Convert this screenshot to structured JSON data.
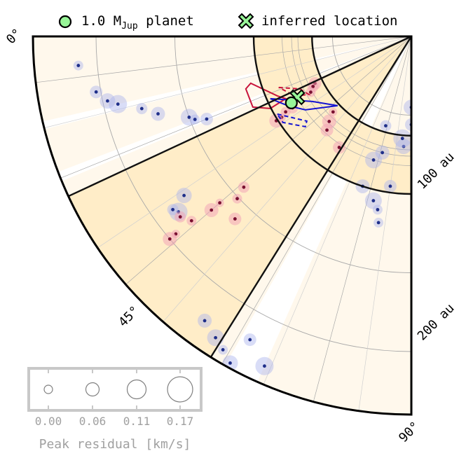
{
  "legend": {
    "planet_label": "1.0 M",
    "planet_sub": "Jup",
    "planet_suffix": " planet",
    "inferred_label": "inferred location"
  },
  "colors": {
    "wedge_fill": "#fff8ec",
    "band_fill": "#ffedc8",
    "planet": "#98f598",
    "blue_marker": "#1f2f8a",
    "blue_halo": "#aab4ee",
    "red_marker": "#7a1030",
    "red_halo": "#f2a0b6",
    "contour_red": "#c8143c",
    "contour_blue": "#1414d2",
    "grid": "#a8a8a8",
    "size_legend": "#b0b0b0"
  },
  "chart_data": {
    "type": "polar-wedge",
    "angle_axis": {
      "unit": "deg",
      "range": [
        0,
        90
      ],
      "ticks": [
        "0°",
        "45°",
        "90°"
      ]
    },
    "radius_axis": {
      "unit": "au",
      "max": 240,
      "ticks": [
        "100 au",
        "200 au"
      ]
    },
    "grid": true,
    "highlight_sector": {
      "angle_range": [
        25,
        58
      ]
    },
    "highlight_annulus": {
      "radius_range": [
        63,
        100
      ]
    },
    "planet": {
      "mass_mjup": 1.0,
      "r_au": 87,
      "theta_deg": 29
    },
    "inferred_location": {
      "r_au": 87,
      "theta_deg": 31
    },
    "blue_points": [
      {
        "r": 212,
        "theta": 5
      },
      {
        "r": 203,
        "theta": 10
      },
      {
        "r": 197,
        "theta": 12
      },
      {
        "r": 191,
        "theta": 13
      },
      {
        "r": 177,
        "theta": 15
      },
      {
        "r": 168,
        "theta": 17
      },
      {
        "r": 150,
        "theta": 20
      },
      {
        "r": 147,
        "theta": 21
      },
      {
        "r": 140,
        "theta": 22
      },
      {
        "r": 176,
        "theta": 35
      },
      {
        "r": 185,
        "theta": 37
      },
      {
        "r": 187,
        "theta": 36
      },
      {
        "r": 223,
        "theta": 54
      },
      {
        "r": 228,
        "theta": 57
      },
      {
        "r": 232,
        "theta": 59
      },
      {
        "r": 218,
        "theta": 62
      },
      {
        "r": 237,
        "theta": 61
      },
      {
        "r": 229,
        "theta": 66
      },
      {
        "r": 245,
        "theta": 65
      },
      {
        "r": 100,
        "theta": 72
      },
      {
        "r": 107,
        "theta": 77
      },
      {
        "r": 112,
        "theta": 79
      },
      {
        "r": 96,
        "theta": 82
      },
      {
        "r": 70,
        "theta": 86
      },
      {
        "r": 65,
        "theta": 85
      },
      {
        "r": 59,
        "theta": 74
      },
      {
        "r": 76,
        "theta": 76
      },
      {
        "r": 82,
        "theta": 73
      },
      {
        "r": 120,
        "theta": 80
      },
      {
        "r": 56,
        "theta": 90
      },
      {
        "r": 45,
        "theta": 90
      }
    ],
    "red_points": [
      {
        "r": 69,
        "theta": 44
      },
      {
        "r": 75,
        "theta": 46
      },
      {
        "r": 80,
        "theta": 48
      },
      {
        "r": 88,
        "theta": 31
      },
      {
        "r": 93,
        "theta": 31
      },
      {
        "r": 97,
        "theta": 32
      },
      {
        "r": 101,
        "theta": 32
      },
      {
        "r": 84,
        "theta": 57
      },
      {
        "r": 143,
        "theta": 42
      },
      {
        "r": 151,
        "theta": 43
      },
      {
        "r": 161,
        "theta": 41
      },
      {
        "r": 168,
        "theta": 41
      },
      {
        "r": 161,
        "theta": 46
      },
      {
        "r": 186,
        "theta": 38
      },
      {
        "r": 182,
        "theta": 40
      },
      {
        "r": 195,
        "theta": 40
      },
      {
        "r": 200,
        "theta": 40
      },
      {
        "r": 68,
        "theta": 26
      },
      {
        "r": 70,
        "theta": 27
      },
      {
        "r": 73,
        "theta": 29
      }
    ],
    "size_legend": {
      "label": "Peak residual [km/s]",
      "values": [
        "0.00",
        "0.06",
        "0.11",
        "0.17"
      ]
    }
  }
}
